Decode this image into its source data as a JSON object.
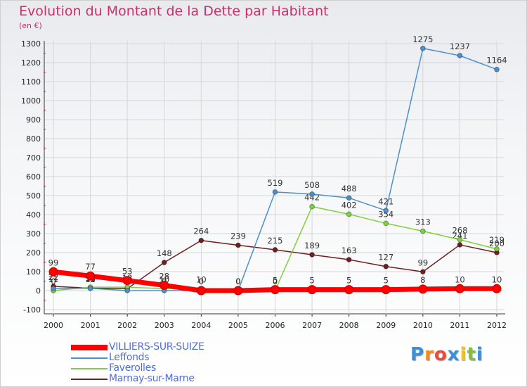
{
  "chart_data": {
    "type": "line",
    "title": "Evolution du Montant de la Dette par Habitant",
    "unit_label": "(en €)",
    "x": [
      "2000",
      "2001",
      "2002",
      "2003",
      "2004",
      "2005",
      "2006",
      "2007",
      "2008",
      "2009",
      "2010",
      "2011",
      "2012"
    ],
    "ylim": [
      -100,
      1300
    ],
    "yticks": [
      -100,
      0,
      100,
      200,
      300,
      400,
      500,
      600,
      700,
      800,
      900,
      1000,
      1100,
      1200,
      1300
    ],
    "grid": true,
    "legend_position": "bottom-left",
    "series": [
      {
        "name": "Marnay-sur-Marne",
        "color": "#6e1f22",
        "values": [
          22,
          13,
          10,
          148,
          264,
          239,
          215,
          189,
          163,
          127,
          99,
          241,
          200
        ],
        "labels": [
          "22",
          "13",
          "10",
          "148",
          "264",
          "239",
          "215",
          "189",
          "163",
          "127",
          "99",
          "241",
          "200"
        ]
      },
      {
        "name": "Faverolles",
        "color": "#7fd13b",
        "values": [
          0,
          18,
          18,
          10,
          10,
          0,
          0,
          442,
          402,
          354,
          313,
          268,
          219
        ],
        "labels": [
          "0",
          "18",
          "18",
          "10",
          "10",
          "0",
          "0",
          "442",
          "402",
          "354",
          "313",
          "268",
          "219"
        ]
      },
      {
        "name": "Leffonds",
        "color": "#4f8fc8",
        "values": [
          11,
          12,
          0,
          0,
          0,
          0,
          519,
          508,
          488,
          421,
          1275,
          1237,
          1164
        ],
        "labels": [
          "11",
          "12",
          "0",
          "0",
          "0",
          "0",
          "519",
          "508",
          "488",
          "421",
          "1275",
          "1237",
          "1164"
        ]
      },
      {
        "name": "VILLIERS-SUR-SUIZE",
        "color": "#ff0000",
        "values": [
          99,
          77,
          53,
          28,
          0,
          0,
          5,
          5,
          5,
          5,
          8,
          10,
          10
        ],
        "labels": [
          "99",
          "77",
          "53",
          "28",
          "0",
          "0",
          "5",
          "5",
          "5",
          "5",
          "8",
          "10",
          "10"
        ]
      }
    ]
  },
  "legend": [
    {
      "name": "VILLIERS-SUR-SUIZE",
      "color": "#ff0000",
      "text_color": "#4f6fd8"
    },
    {
      "name": "Leffonds",
      "color": "#4f8fc8",
      "text_color": "#4f6fd8"
    },
    {
      "name": "Faverolles",
      "color": "#7fd13b",
      "text_color": "#4f6fd8"
    },
    {
      "name": "Marnay-sur-Marne",
      "color": "#6e1f22",
      "text_color": "#4f6fd8"
    }
  ],
  "brand": {
    "letters": [
      "P",
      "r",
      "o",
      "x",
      "i",
      "t",
      "i"
    ],
    "colors": [
      "#3a8fd6",
      "#f28c1c",
      "#e74c3c",
      "#3a8fd6",
      "#f2c21c",
      "#7fbf3b",
      "#3a8fd6"
    ]
  }
}
